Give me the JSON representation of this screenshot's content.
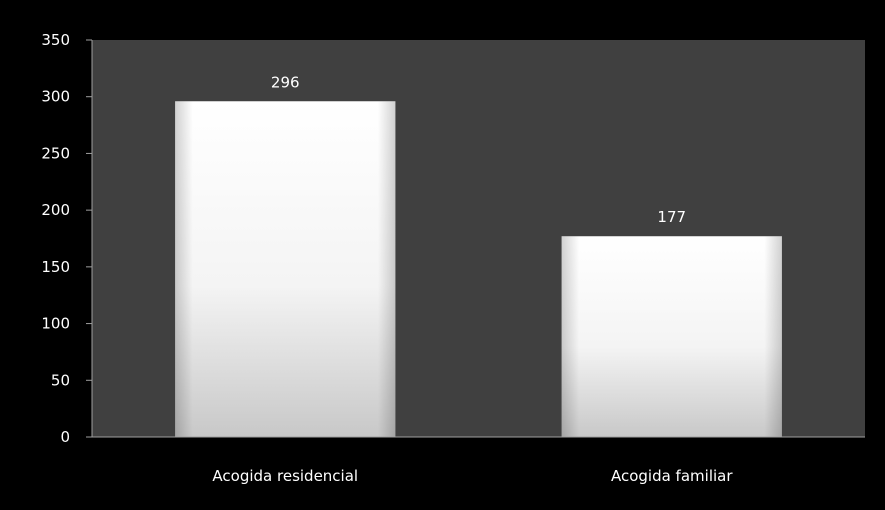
{
  "chart_data": {
    "type": "bar",
    "categories": [
      "Acogida residencial",
      "Acogida familiar"
    ],
    "values": [
      296,
      177
    ],
    "data_labels": [
      "296",
      "177"
    ],
    "ylim": [
      0,
      350
    ],
    "yticks": [
      0,
      50,
      100,
      150,
      200,
      250,
      300,
      350
    ],
    "ytick_labels": [
      "0",
      "50",
      "100",
      "150",
      "200",
      "250",
      "300",
      "350"
    ],
    "grid": false,
    "legend": "none",
    "colors": {
      "background": "#000000",
      "plot_area": "#404040",
      "bar_top": "#ffffff",
      "bar_bottom": "#c8c8c8",
      "text": "#ffffff",
      "axis": "#a0a0a0"
    }
  }
}
